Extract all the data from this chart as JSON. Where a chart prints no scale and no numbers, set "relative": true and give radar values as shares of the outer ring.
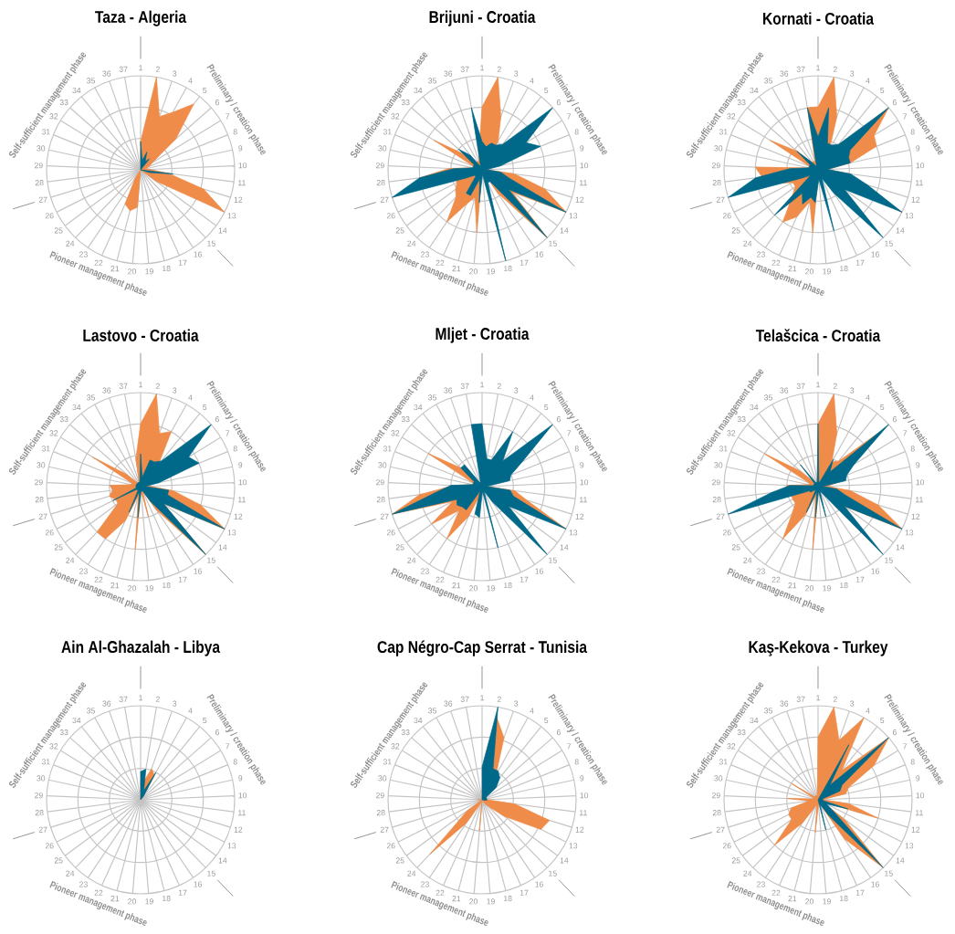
{
  "chart_data": [
    {
      "type": "radar",
      "title": "Taza - Algeria",
      "relative": true,
      "grid": true,
      "categories": [
        "1",
        "2",
        "3",
        "4",
        "5",
        "6",
        "7",
        "8",
        "9",
        "10",
        "11",
        "12",
        "13",
        "14",
        "15",
        "16",
        "17",
        "18",
        "19",
        "20",
        "21",
        "22",
        "23",
        "24",
        "25",
        "26",
        "27",
        "28",
        "29",
        "30",
        "31",
        "32",
        "33",
        "34",
        "35",
        "36",
        "37"
      ],
      "annotations": [
        "Preliminary / creation phase",
        "Pioneer management phase",
        "Self-sufficient management phase"
      ],
      "series": [
        {
          "color": "#ef8c4a",
          "values": [
            0.3,
            1.0,
            0.6,
            0.7,
            0.9,
            0.5,
            0.15,
            0.1,
            0.05,
            0.1,
            0.3,
            0.7,
            1.0,
            0.2,
            0,
            0,
            0,
            0,
            0,
            0.4,
            0.45,
            0.4,
            0.1,
            0,
            0,
            0,
            0,
            0,
            0,
            0,
            0,
            0,
            0,
            0,
            0,
            0,
            0
          ]
        },
        {
          "color": "#00698a",
          "values": [
            0.3,
            0.1,
            0.2,
            0.1,
            0.15,
            0,
            0,
            0,
            0,
            0,
            0.35,
            0.1,
            0,
            0,
            0,
            0,
            0,
            0,
            0,
            0,
            0,
            0,
            0,
            0,
            0,
            0,
            0,
            0,
            0,
            0,
            0,
            0,
            0,
            0,
            0,
            0,
            0
          ]
        }
      ]
    },
    {
      "type": "radar",
      "title": "Brijuni - Croatia",
      "relative": true,
      "grid": true,
      "categories": [
        "1",
        "2",
        "3",
        "4",
        "5",
        "6",
        "7",
        "8",
        "9",
        "10",
        "11",
        "12",
        "13",
        "14",
        "15",
        "16",
        "17",
        "18",
        "19",
        "20",
        "21",
        "22",
        "23",
        "24",
        "25",
        "26",
        "27",
        "28",
        "29",
        "30",
        "31",
        "32",
        "33",
        "34",
        "35",
        "36",
        "37"
      ],
      "annotations": [
        "Preliminary / creation phase",
        "Pioneer management phase",
        "Self-sufficient management phase"
      ],
      "series": [
        {
          "color": "#ef8c4a",
          "values": [
            0.67,
            1.0,
            0.6,
            0.35,
            0.1,
            0.1,
            0.1,
            0.1,
            0.1,
            0.05,
            0.35,
            0.7,
            1.0,
            0.4,
            1.0,
            0.3,
            0,
            0,
            0,
            0.67,
            0.3,
            0.4,
            0.67,
            0.4,
            0.35,
            0.3,
            0.3,
            0.67,
            0.35,
            0.1,
            0.1,
            0.6,
            0.25,
            0.1,
            0.1,
            0.1,
            0.2
          ]
        },
        {
          "color": "#00698a",
          "values": [
            0.3,
            0.25,
            0.3,
            0.3,
            0.35,
            1.0,
            0.55,
            0.67,
            0.2,
            0.05,
            0.2,
            0.3,
            1.0,
            0.35,
            1.0,
            0.15,
            0.15,
            1.0,
            0.05,
            0.35,
            0.1,
            0.3,
            0.3,
            0.1,
            0.1,
            0.2,
            1.0,
            0.67,
            0.3,
            0.1,
            0.1,
            0.1,
            0.33,
            0.2,
            0.05,
            0.05,
            0.67
          ]
        }
      ]
    },
    {
      "type": "radar",
      "title": "Kornati - Croatia",
      "relative": true,
      "grid": true,
      "categories": [
        "1",
        "2",
        "3",
        "4",
        "5",
        "6",
        "7",
        "8",
        "9",
        "10",
        "11",
        "12",
        "13",
        "14",
        "15",
        "16",
        "17",
        "18",
        "19",
        "20",
        "21",
        "22",
        "23",
        "24",
        "25",
        "26",
        "27",
        "28",
        "29",
        "30",
        "31",
        "32",
        "33",
        "34",
        "35",
        "36",
        "37"
      ],
      "annotations": [
        "Preliminary / creation phase",
        "Pioneer management phase",
        "Self-sufficient management phase"
      ],
      "series": [
        {
          "color": "#ef8c4a",
          "values": [
            0.67,
            1.0,
            0.6,
            0.25,
            0.3,
            1.0,
            0.7,
            0.67,
            0.35,
            0.1,
            0.35,
            0.3,
            1.0,
            0.2,
            0.3,
            0.1,
            0.05,
            0.05,
            0.05,
            0.67,
            0.35,
            0.55,
            0.67,
            0.4,
            0.3,
            0.3,
            0.5,
            0.6,
            0.67,
            0.1,
            0.1,
            0.6,
            0.3,
            0.1,
            0.1,
            0.1,
            0.67
          ]
        },
        {
          "color": "#00698a",
          "values": [
            0.35,
            0.67,
            0.3,
            0.3,
            0.35,
            1.0,
            0.4,
            0.35,
            0.35,
            0.1,
            0.35,
            0.55,
            1.0,
            0.35,
            1.0,
            0.3,
            0.1,
            0.67,
            0.1,
            0.35,
            0.3,
            0.4,
            0.3,
            0.67,
            0.1,
            0.2,
            1.0,
            0.67,
            0.3,
            0.1,
            0.1,
            0.1,
            0.3,
            0.1,
            0.05,
            0.05,
            0.67
          ]
        }
      ]
    },
    {
      "type": "radar",
      "title": "Lastovo - Croatia",
      "relative": true,
      "grid": true,
      "categories": [
        "1",
        "2",
        "3",
        "4",
        "5",
        "6",
        "7",
        "8",
        "9",
        "10",
        "11",
        "12",
        "13",
        "14",
        "15",
        "16",
        "17",
        "18",
        "19",
        "20",
        "21",
        "22",
        "23",
        "24",
        "25",
        "26",
        "27",
        "28",
        "29",
        "30",
        "31",
        "32",
        "33",
        "34",
        "35",
        "36",
        "37"
      ],
      "annotations": [
        "Preliminary / creation phase",
        "Pioneer management phase",
        "Self-sufficient management phase"
      ],
      "series": [
        {
          "color": "#ef8c4a",
          "values": [
            0.67,
            1.0,
            0.6,
            0.67,
            0.3,
            0.2,
            0.1,
            0.1,
            0.1,
            0.1,
            0.35,
            0.67,
            1.0,
            0.3,
            1.0,
            0.3,
            0.05,
            0.33,
            0.05,
            0.67,
            0.1,
            0.4,
            0.67,
            0.67,
            0.3,
            0.3,
            0.35,
            0.3,
            0.33,
            0.1,
            0.1,
            0.6,
            0.2,
            0.05,
            0.05,
            0.05,
            0.3
          ]
        },
        {
          "color": "#00698a",
          "values": [
            0.35,
            0.1,
            0.3,
            0.3,
            0.35,
            1.0,
            0.6,
            0.67,
            0.2,
            0.05,
            0.3,
            0.3,
            1.0,
            0.3,
            1.0,
            0.2,
            0.05,
            0.05,
            0.05,
            0.33,
            0.05,
            0.3,
            0.05,
            0.05,
            0.05,
            0.33,
            0.05,
            0.05,
            0.05,
            0.05,
            0.05,
            0.05,
            0.05,
            0.05,
            0.05,
            0.05,
            0.05
          ]
        }
      ]
    },
    {
      "type": "radar",
      "title": "Mljet - Croatia",
      "relative": true,
      "grid": true,
      "categories": [
        "1",
        "2",
        "3",
        "4",
        "5",
        "6",
        "7",
        "8",
        "9",
        "10",
        "11",
        "12",
        "13",
        "14",
        "15",
        "16",
        "17",
        "18",
        "19",
        "20",
        "21",
        "22",
        "23",
        "24",
        "25",
        "26",
        "27",
        "28",
        "29",
        "30",
        "31",
        "32",
        "33",
        "34",
        "35",
        "36",
        "37"
      ],
      "annotations": [
        "Preliminary / creation phase",
        "Pioneer management phase",
        "Self-sufficient management phase"
      ],
      "series": [
        {
          "color": "#ef8c4a",
          "values": [
            0,
            0.05,
            0.05,
            0.05,
            0.05,
            0.05,
            0.05,
            0.05,
            0.05,
            0.05,
            0.35,
            0.5,
            1.0,
            0.1,
            0.05,
            0.05,
            0.05,
            0.05,
            0.05,
            0.05,
            0.1,
            0.35,
            0.67,
            0.35,
            0.67,
            0.35,
            1.0,
            0.67,
            0.3,
            0.1,
            0.1,
            0.67,
            0.3,
            0.05,
            0.05,
            0.05,
            0.05
          ]
        },
        {
          "color": "#00698a",
          "values": [
            0.67,
            0.3,
            0.3,
            0.67,
            0.35,
            1.0,
            0.5,
            0.33,
            0.3,
            0.05,
            0.3,
            0.35,
            1.0,
            0.35,
            1.0,
            0.2,
            0.05,
            0.67,
            0.05,
            0.33,
            0.3,
            0.05,
            0.3,
            0.3,
            0.33,
            0.3,
            1.0,
            0.5,
            0.33,
            0.1,
            0.1,
            0.1,
            0.3,
            0.3,
            0.05,
            0.05,
            0.67
          ]
        }
      ]
    },
    {
      "type": "radar",
      "title": "Telašcica - Croatia",
      "relative": true,
      "grid": true,
      "categories": [
        "1",
        "2",
        "3",
        "4",
        "5",
        "6",
        "7",
        "8",
        "9",
        "10",
        "11",
        "12",
        "13",
        "14",
        "15",
        "16",
        "17",
        "18",
        "19",
        "20",
        "21",
        "22",
        "23",
        "24",
        "25",
        "26",
        "27",
        "28",
        "29",
        "30",
        "31",
        "32",
        "33",
        "34",
        "35",
        "36",
        "37"
      ],
      "annotations": [
        "Preliminary / creation phase",
        "Pioneer management phase",
        "Self-sufficient management phase"
      ],
      "series": [
        {
          "color": "#ef8c4a",
          "values": [
            0.67,
            1.0,
            0.6,
            0.3,
            0.35,
            0.9,
            0.4,
            0.2,
            0.2,
            0.1,
            0.35,
            0.67,
            1.0,
            0.35,
            0.35,
            0.05,
            0.05,
            0.05,
            0.05,
            0.67,
            0.1,
            0.33,
            0.67,
            0.4,
            0.3,
            0.3,
            0.3,
            0.35,
            0.33,
            0.1,
            0.1,
            0.67,
            0.25,
            0.05,
            0.05,
            0.05,
            0.05
          ]
        },
        {
          "color": "#00698a",
          "values": [
            0.67,
            0.05,
            0.05,
            0.33,
            0.2,
            1.0,
            0.45,
            0.33,
            0.3,
            0.05,
            0.2,
            0.3,
            1.0,
            0.35,
            1.0,
            0.1,
            0.05,
            0.33,
            0.05,
            0.33,
            0.05,
            0.3,
            0.05,
            0.05,
            0.1,
            0.1,
            1.0,
            0.5,
            0.3,
            0.05,
            0.05,
            0.05,
            0.05,
            0.3,
            0.05,
            0.05,
            0.05
          ]
        }
      ]
    },
    {
      "type": "radar",
      "title": "Ain Al-Ghazalah - Libya",
      "relative": true,
      "grid": true,
      "categories": [
        "1",
        "2",
        "3",
        "4",
        "5",
        "6",
        "7",
        "8",
        "9",
        "10",
        "11",
        "12",
        "13",
        "14",
        "15",
        "16",
        "17",
        "18",
        "19",
        "20",
        "21",
        "22",
        "23",
        "24",
        "25",
        "26",
        "27",
        "28",
        "29",
        "30",
        "31",
        "32",
        "33",
        "34",
        "35",
        "36",
        "37"
      ],
      "annotations": [
        "Preliminary / creation phase",
        "Pioneer management phase",
        "Self-sufficient management phase"
      ],
      "series": [
        {
          "color": "#ef8c4a",
          "values": [
            0.2,
            0.2,
            0.35,
            0.3,
            0.05,
            0,
            0,
            0,
            0,
            0,
            0,
            0,
            0,
            0,
            0,
            0,
            0,
            0,
            0,
            0,
            0,
            0,
            0,
            0,
            0,
            0,
            0,
            0,
            0,
            0,
            0,
            0,
            0,
            0,
            0,
            0,
            0
          ]
        },
        {
          "color": "#00698a",
          "values": [
            0.3,
            0.33,
            0.1,
            0.33,
            0.05,
            0,
            0,
            0,
            0,
            0,
            0,
            0,
            0,
            0,
            0,
            0,
            0,
            0,
            0,
            0,
            0,
            0,
            0,
            0,
            0,
            0,
            0,
            0,
            0,
            0,
            0,
            0,
            0,
            0,
            0,
            0,
            0
          ]
        }
      ]
    },
    {
      "type": "radar",
      "title": "Cap Négro-Cap Serrat - Tunisia",
      "relative": true,
      "grid": true,
      "categories": [
        "1",
        "2",
        "3",
        "4",
        "5",
        "6",
        "7",
        "8",
        "9",
        "10",
        "11",
        "12",
        "13",
        "14",
        "15",
        "16",
        "17",
        "18",
        "19",
        "20",
        "21",
        "22",
        "23",
        "24",
        "25",
        "26",
        "27",
        "28",
        "29",
        "30",
        "31",
        "32",
        "33",
        "34",
        "35",
        "36",
        "37"
      ],
      "annotations": [
        "Preliminary / creation phase",
        "Pioneer management phase",
        "Self-sufficient management phase"
      ],
      "series": [
        {
          "color": "#ef8c4a",
          "values": [
            0.1,
            0.9,
            0.7,
            0.3,
            0.1,
            0.05,
            0.05,
            0.05,
            0.05,
            0.05,
            0.35,
            0.75,
            0.7,
            0.3,
            0.1,
            0.05,
            0,
            0,
            0,
            0.33,
            0,
            0.05,
            0.3,
            0.8,
            0.2,
            0,
            0,
            0,
            0.05,
            0,
            0,
            0,
            0,
            0,
            0,
            0,
            0
          ]
        },
        {
          "color": "#00698a",
          "values": [
            0.35,
            1.0,
            0.35,
            0.35,
            0.3,
            0.2,
            0.05,
            0.05,
            0.05,
            0.05,
            0.05,
            0,
            0,
            0,
            0,
            0,
            0,
            0,
            0,
            0,
            0,
            0,
            0,
            0,
            0,
            0,
            0,
            0,
            0,
            0,
            0,
            0,
            0,
            0,
            0,
            0,
            0
          ]
        }
      ]
    },
    {
      "type": "radar",
      "title": "Kaş-Kekova - Turkey",
      "relative": true,
      "grid": true,
      "categories": [
        "1",
        "2",
        "3",
        "4",
        "5",
        "6",
        "7",
        "8",
        "9",
        "10",
        "11",
        "12",
        "13",
        "14",
        "15",
        "16",
        "17",
        "18",
        "19",
        "20",
        "21",
        "22",
        "23",
        "24",
        "25",
        "26",
        "27",
        "28",
        "29",
        "30",
        "31",
        "32",
        "33",
        "34",
        "35",
        "36",
        "37"
      ],
      "annotations": [
        "Preliminary / creation phase",
        "Pioneer management phase",
        "Self-sufficient management phase"
      ],
      "series": [
        {
          "color": "#ef8c4a",
          "values": [
            0.67,
            1.0,
            0.67,
            1.0,
            0.4,
            1.0,
            0.7,
            0.35,
            0.3,
            0.05,
            0.33,
            0.67,
            0.05,
            0.35,
            1.0,
            0.5,
            0.05,
            0.05,
            0.05,
            0.35,
            0.05,
            0.1,
            0.3,
            0.67,
            0.35,
            0.35,
            0.3,
            0.1,
            0.33,
            0.05,
            0.05,
            0.33,
            0.05,
            0.05,
            0.05,
            0.05,
            0.05
          ]
        },
        {
          "color": "#00698a",
          "values": [
            0,
            0,
            0,
            0.67,
            0.2,
            1.0,
            0.3,
            0.25,
            0.05,
            0.05,
            0.05,
            0.33,
            0.1,
            0.2,
            1.0,
            0.2,
            0.05,
            0.33,
            0,
            0,
            0,
            0,
            0,
            0,
            0,
            0,
            0,
            0,
            0,
            0,
            0,
            0,
            0,
            0,
            0,
            0,
            0
          ]
        }
      ]
    }
  ]
}
